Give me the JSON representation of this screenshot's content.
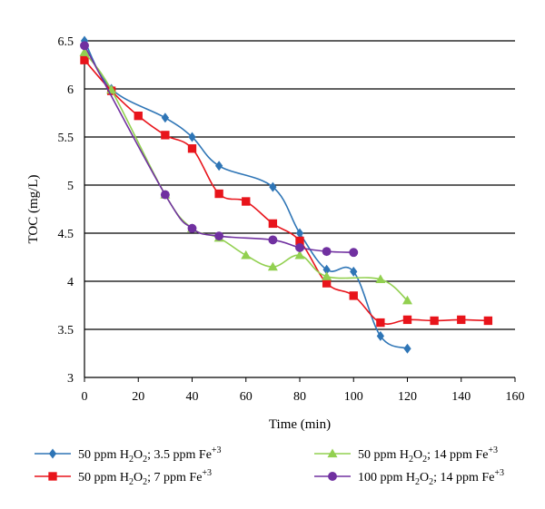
{
  "chart_data": {
    "type": "line",
    "xlabel": "Time (min)",
    "ylabel": "TOC (mg/L)",
    "xlim": [
      0,
      160
    ],
    "ylim": [
      3,
      6.5
    ],
    "xticks": [
      "0",
      "20",
      "40",
      "60",
      "80",
      "100",
      "120",
      "140",
      "160"
    ],
    "yticks": [
      "3",
      "3.5",
      "4",
      "4.5",
      "5",
      "5.5",
      "6",
      "6.5"
    ],
    "grid": "horizontal",
    "legend_position": "bottom",
    "series": [
      {
        "name": "50 ppm H2O2; 3.5 ppm Fe+3",
        "label_parts": [
          "50 ppm H",
          "2",
          "O",
          "2",
          "; 3.5 ppm Fe",
          "+3"
        ],
        "color": "#2E75B6",
        "marker": "diamond",
        "x": [
          0,
          10,
          30,
          40,
          50,
          70,
          80,
          90,
          100,
          110,
          120
        ],
        "y": [
          6.5,
          6.0,
          5.7,
          5.5,
          5.2,
          4.98,
          4.5,
          4.12,
          4.1,
          3.43,
          3.3
        ]
      },
      {
        "name": "50 ppm H2O2; 7 ppm Fe+3",
        "label_parts": [
          "50 ppm H",
          "2",
          "O",
          "2",
          "; 7 ppm Fe",
          "+3"
        ],
        "color": "#E8141B",
        "marker": "square",
        "x": [
          0,
          10,
          20,
          30,
          40,
          50,
          60,
          70,
          80,
          90,
          100,
          110,
          120,
          130,
          140,
          150
        ],
        "y": [
          6.3,
          5.98,
          5.72,
          5.52,
          5.38,
          4.91,
          4.83,
          4.6,
          4.42,
          3.98,
          3.85,
          3.57,
          3.6,
          3.59,
          3.6,
          3.59
        ]
      },
      {
        "name": "50 ppm H2O2; 14 ppm Fe+3",
        "label_parts": [
          "50 ppm H",
          "2",
          "O",
          "2",
          "; 14 ppm Fe",
          "+3"
        ],
        "color": "#92D050",
        "marker": "triangle",
        "x": [
          0,
          10,
          30,
          40,
          50,
          60,
          70,
          80,
          90,
          110,
          120
        ],
        "y": [
          6.38,
          5.99,
          4.9,
          4.55,
          4.45,
          4.27,
          4.15,
          4.27,
          4.05,
          4.02,
          3.8
        ]
      },
      {
        "name": "100 ppm H2O2; 14 ppm Fe+3",
        "label_parts": [
          "100 ppm H",
          "2",
          "O",
          "2",
          "; 14 ppm Fe",
          "+3"
        ],
        "color": "#7030A0",
        "marker": "circle",
        "x": [
          0,
          30,
          40,
          50,
          70,
          80,
          90,
          100
        ],
        "y": [
          6.45,
          4.9,
          4.55,
          4.47,
          4.43,
          4.35,
          4.31,
          4.3
        ]
      }
    ]
  }
}
